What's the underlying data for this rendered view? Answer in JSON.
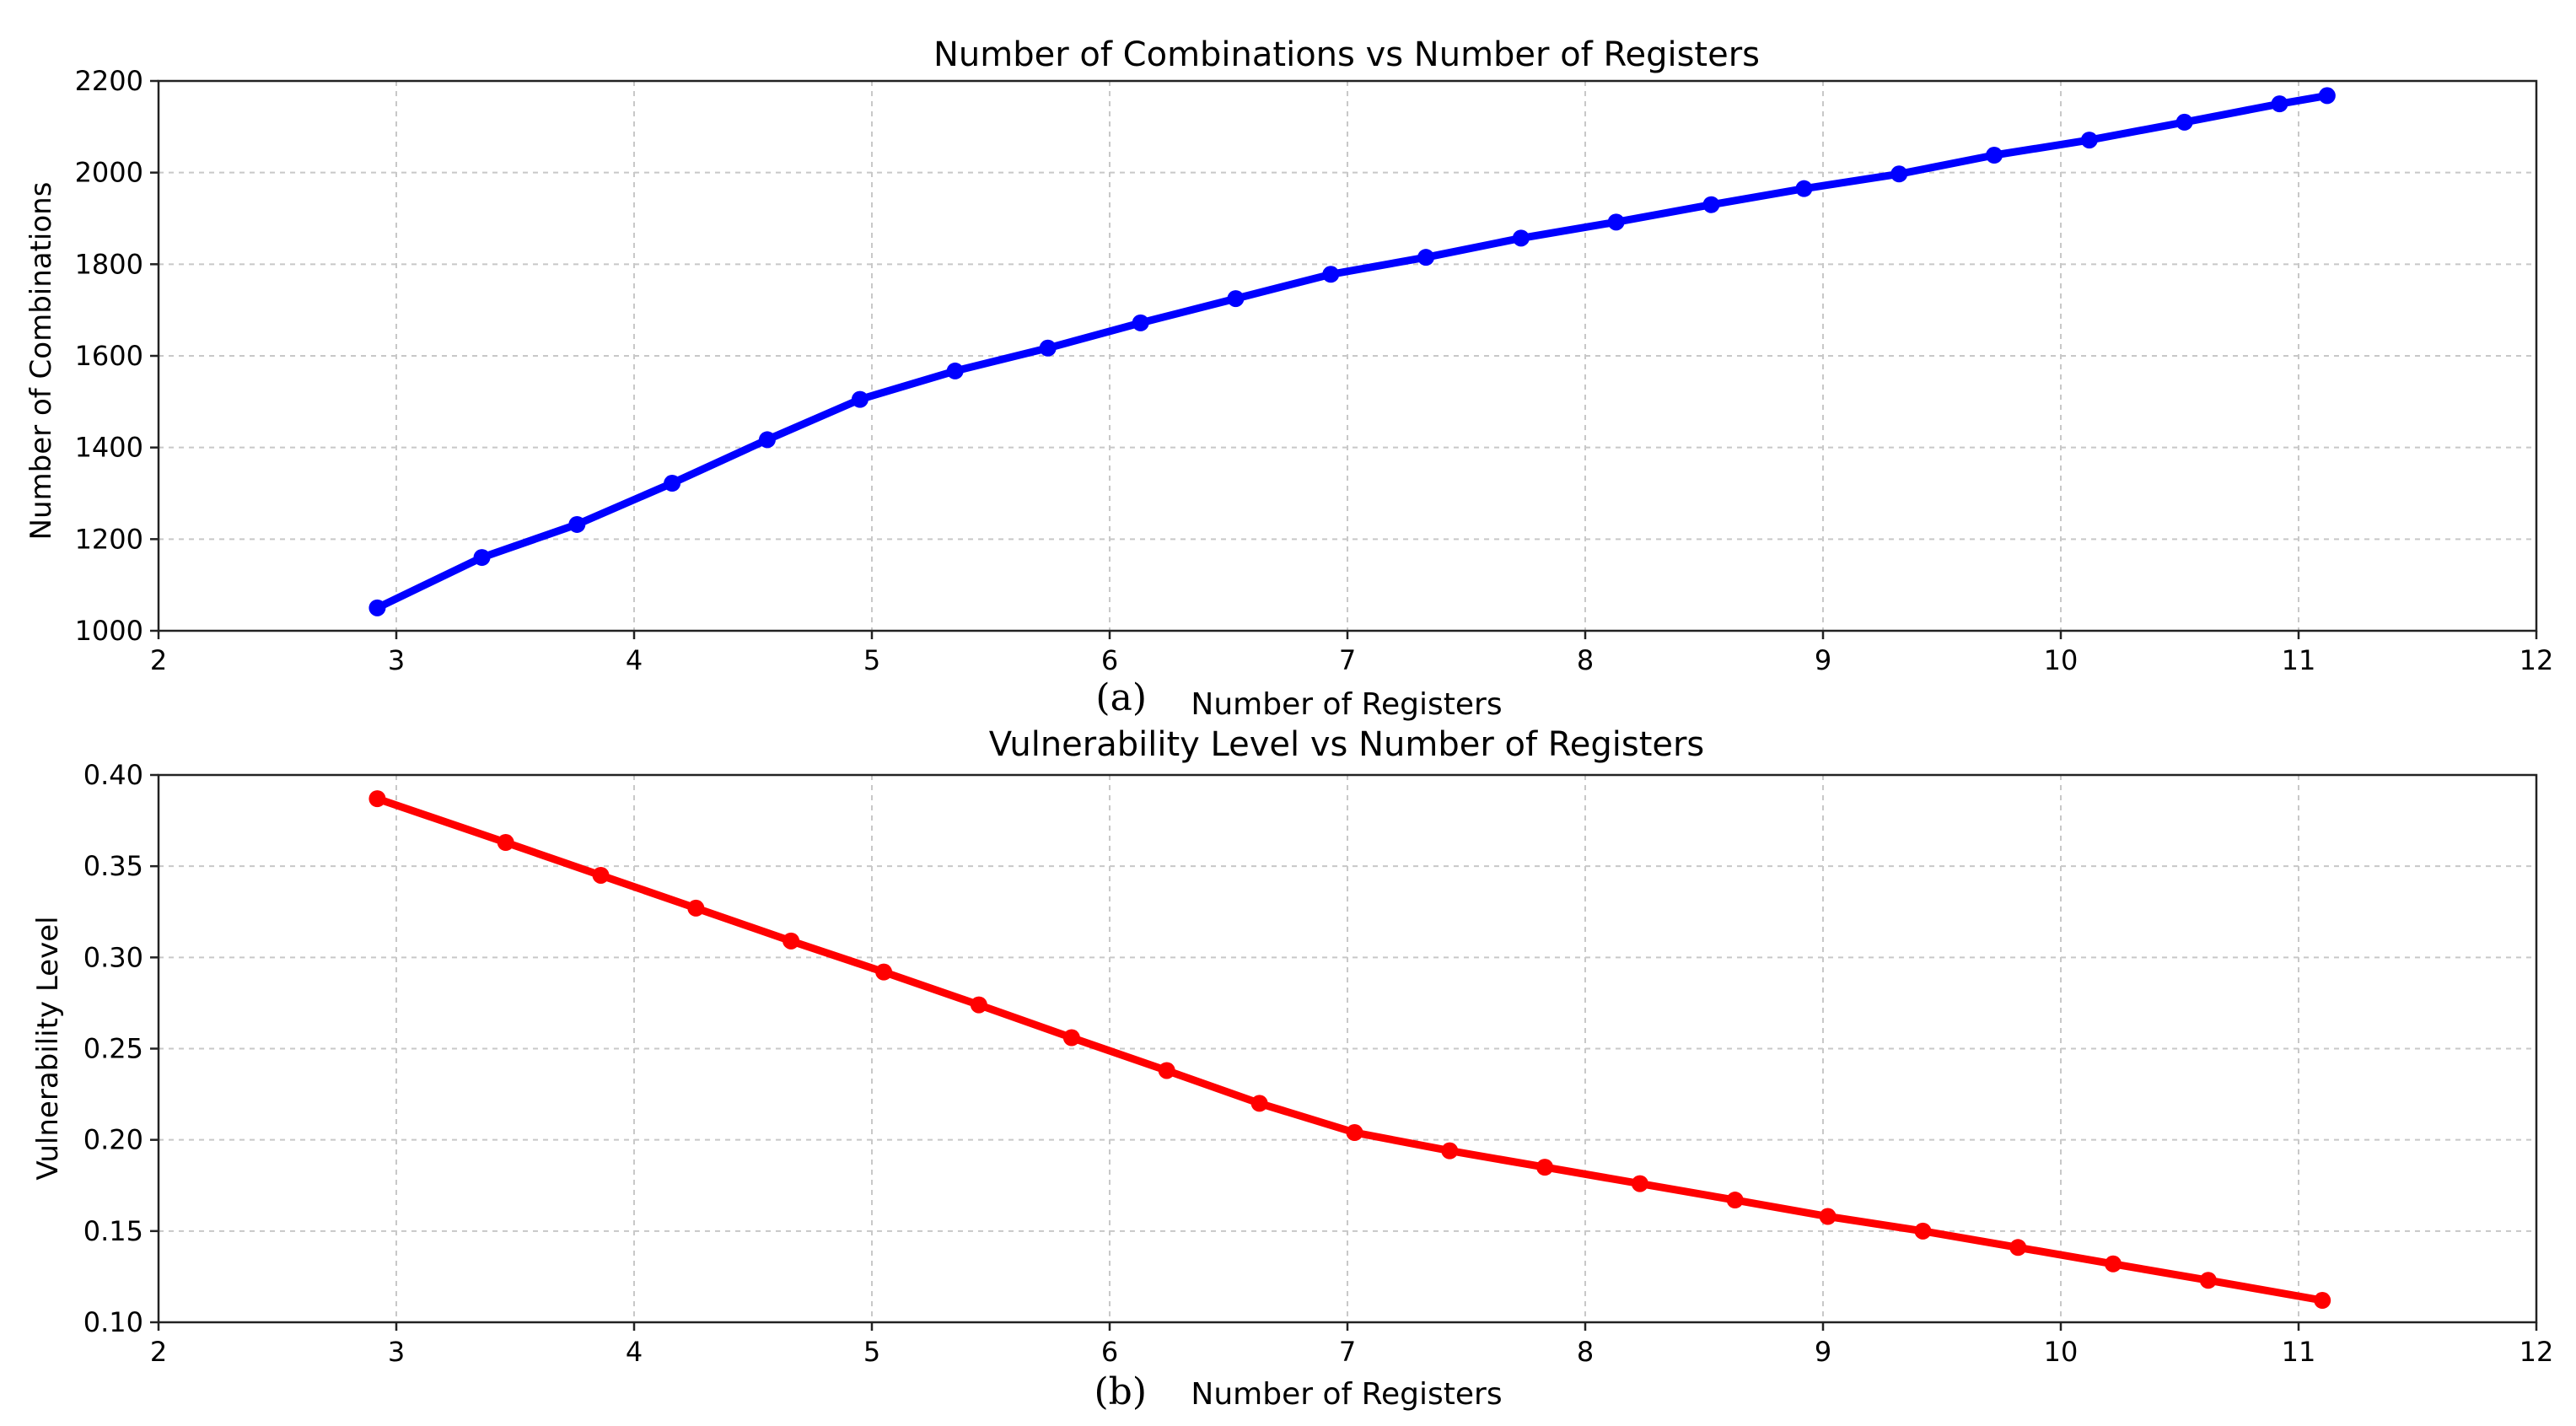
{
  "chart_data": [
    {
      "type": "line",
      "panel_label": "(a)",
      "title": "Number of Combinations vs Number of Registers",
      "xlabel": "Number of Registers",
      "ylabel": "Number of Combinations",
      "xlim": [
        2,
        12
      ],
      "ylim": [
        1000,
        2200
      ],
      "xticks": [
        2,
        3,
        4,
        5,
        6,
        7,
        8,
        9,
        10,
        11,
        12
      ],
      "yticks": [
        1000,
        1200,
        1400,
        1600,
        1800,
        2000,
        2200
      ],
      "ytick_labels": [
        "1000",
        "1200",
        "1400",
        "1600",
        "1800",
        "2000",
        "2200"
      ],
      "grid": true,
      "color": "#0000ff",
      "series": [
        {
          "x": [
            2.92,
            3.36,
            3.76,
            4.16,
            4.56,
            4.95,
            5.35,
            5.74,
            6.13,
            6.53,
            6.93,
            7.33,
            7.73,
            8.13,
            8.53,
            8.92,
            9.32,
            9.72,
            10.12,
            10.52,
            10.92,
            11.12
          ],
          "y": [
            1050,
            1160,
            1232,
            1322,
            1417,
            1505,
            1567,
            1617,
            1672,
            1725,
            1778,
            1815,
            1857,
            1892,
            1930,
            1965,
            1997,
            2038,
            2071,
            2110,
            2150,
            2168
          ]
        }
      ]
    },
    {
      "type": "line",
      "panel_label": "(b)",
      "title": "Vulnerability Level vs Number of Registers",
      "xlabel": "Number of Registers",
      "ylabel": "Vulnerability Level",
      "xlim": [
        2,
        12
      ],
      "ylim": [
        0.1,
        0.4
      ],
      "xticks": [
        2,
        3,
        4,
        5,
        6,
        7,
        8,
        9,
        10,
        11,
        12
      ],
      "yticks": [
        0.1,
        0.15,
        0.2,
        0.25,
        0.3,
        0.35,
        0.4
      ],
      "ytick_labels": [
        "0.10",
        "0.15",
        "0.20",
        "0.25",
        "0.30",
        "0.35",
        "0.40"
      ],
      "grid": true,
      "color": "#ff0000",
      "series": [
        {
          "x": [
            2.92,
            3.46,
            3.86,
            4.26,
            4.66,
            5.05,
            5.45,
            5.84,
            6.24,
            6.63,
            7.03,
            7.43,
            7.83,
            8.23,
            8.63,
            9.02,
            9.42,
            9.82,
            10.22,
            10.62,
            11.1
          ],
          "y": [
            0.387,
            0.363,
            0.345,
            0.327,
            0.309,
            0.292,
            0.274,
            0.256,
            0.238,
            0.22,
            0.204,
            0.194,
            0.185,
            0.176,
            0.167,
            0.158,
            0.15,
            0.141,
            0.132,
            0.123,
            0.112
          ]
        }
      ]
    }
  ]
}
